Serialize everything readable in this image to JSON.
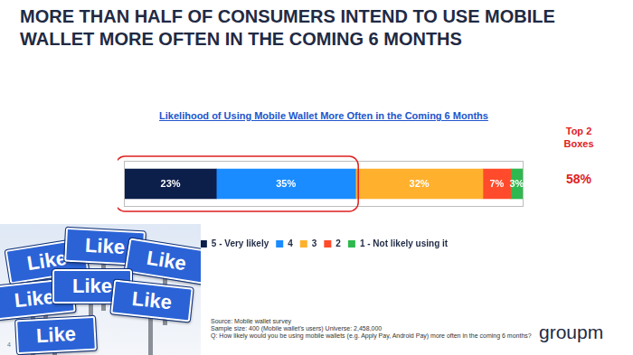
{
  "chart_data": {
    "type": "bar",
    "orientation": "horizontal",
    "stacked": true,
    "title": "MORE THAN HALF OF CONSUMERS INTEND TO USE MOBILE WALLET MORE OFTEN IN THE COMING 6 MONTHS",
    "subtitle": "Likelihood of Using Mobile Wallet More Often in the Coming 6 Months",
    "categories": [
      null
    ],
    "xlim": [
      0,
      100
    ],
    "tick_labels": false,
    "grid": false,
    "legend": "bottom",
    "data_labels": true,
    "series": [
      {
        "name": "5 - Very likely",
        "color": "#0c1e4a",
        "values": [
          23
        ],
        "value_labels": [
          "23%"
        ]
      },
      {
        "name": "4",
        "color": "#1a8cff",
        "values": [
          35
        ],
        "value_labels": [
          "35%"
        ]
      },
      {
        "name": "3",
        "color": "#ffb12e",
        "values": [
          32
        ],
        "value_labels": [
          "32%"
        ]
      },
      {
        "name": "2",
        "color": "#ff4b2b",
        "values": [
          7
        ],
        "value_labels": [
          "7%"
        ]
      },
      {
        "name": "1 - Not likely using it",
        "color": "#2fb84f",
        "values": [
          3
        ],
        "value_labels": [
          "3%"
        ]
      }
    ],
    "annotations": [
      "Top 2 Boxes",
      "58%"
    ]
  },
  "page": {
    "source": [
      "Source: Mobile wallet survey",
      "Sample size: 400 (Mobile wallet's users) Universe: 2,458,000",
      "Q: How likely would you be using mobile wallets (e.g. Apply Pay, Android Pay) more often in the coming 6 months?"
    ],
    "page_number": "4",
    "logo": "groupm",
    "image_signs": [
      "Like",
      "Like",
      "Like",
      "Like",
      "Like",
      "Like",
      "Like"
    ]
  }
}
